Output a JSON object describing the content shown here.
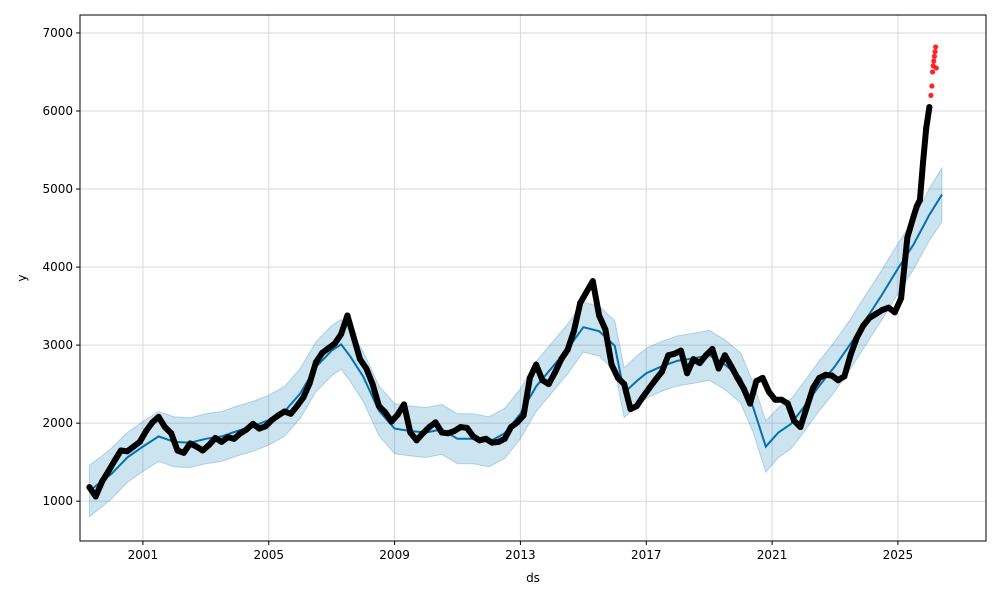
{
  "chart_data": {
    "type": "line",
    "title": "",
    "xlabel": "ds",
    "ylabel": "y",
    "xlim": [
      1999.0,
      2027.8
    ],
    "ylim": [
      490,
      7230
    ],
    "grid": true,
    "legend": "none",
    "x_ticks": [
      {
        "value": 2001.0,
        "label": "2001"
      },
      {
        "value": 2005.0,
        "label": "2005"
      },
      {
        "value": 2009.0,
        "label": "2009"
      },
      {
        "value": 2013.0,
        "label": "2013"
      },
      {
        "value": 2017.0,
        "label": "2017"
      },
      {
        "value": 2021.0,
        "label": "2021"
      },
      {
        "value": 2025.0,
        "label": "2025"
      }
    ],
    "y_ticks": [
      {
        "value": 1000,
        "label": "1000"
      },
      {
        "value": 2000,
        "label": "2000"
      },
      {
        "value": 3000,
        "label": "3000"
      },
      {
        "value": 4000,
        "label": "4000"
      },
      {
        "value": 5000,
        "label": "5000"
      },
      {
        "value": 6000,
        "label": "6000"
      },
      {
        "value": 7000,
        "label": "7000"
      }
    ],
    "colors": {
      "trend": "#0072B2",
      "band": "#0072B2",
      "observed": "#000000",
      "recent": "#FF0000",
      "grid": "#d9d9d9"
    },
    "series": [
      {
        "kind": "forecast",
        "x": [
          1999.3,
          1999.7,
          2000.0,
          2000.5,
          2001.0,
          2001.5,
          2002.0,
          2002.5,
          2003.0,
          2003.5,
          2004.0,
          2004.5,
          2005.0,
          2005.5,
          2006.0,
          2006.5,
          2007.0,
          2007.3,
          2007.6,
          2008.0,
          2008.5,
          2009.0,
          2009.5,
          2010.0,
          2010.5,
          2011.0,
          2011.5,
          2012.0,
          2012.5,
          2013.0,
          2013.5,
          2014.0,
          2014.5,
          2015.0,
          2015.5,
          2016.0,
          2016.3,
          2016.7,
          2017.0,
          2017.5,
          2018.0,
          2018.5,
          2019.0,
          2019.5,
          2020.0,
          2020.4,
          2020.8,
          2021.2,
          2021.6,
          2022.0,
          2022.5,
          2023.0,
          2023.5,
          2024.0,
          2024.5,
          2025.0,
          2025.5,
          2026.0,
          2026.4
        ],
        "y": [
          1130,
          1260,
          1350,
          1560,
          1700,
          1830,
          1760,
          1750,
          1800,
          1830,
          1900,
          1960,
          2040,
          2150,
          2380,
          2720,
          2930,
          3010,
          2850,
          2600,
          2160,
          1930,
          1900,
          1880,
          1920,
          1800,
          1800,
          1760,
          1870,
          2120,
          2470,
          2710,
          2950,
          3230,
          3180,
          2990,
          2390,
          2540,
          2640,
          2730,
          2800,
          2830,
          2870,
          2750,
          2580,
          2200,
          1700,
          1880,
          1990,
          2200,
          2480,
          2730,
          3020,
          3340,
          3650,
          3980,
          4290,
          4670,
          4930
        ],
        "lower": [
          800,
          930,
          1030,
          1240,
          1380,
          1510,
          1440,
          1430,
          1480,
          1510,
          1580,
          1640,
          1720,
          1830,
          2060,
          2400,
          2610,
          2690,
          2530,
          2280,
          1840,
          1610,
          1580,
          1560,
          1600,
          1480,
          1480,
          1440,
          1550,
          1800,
          2150,
          2390,
          2630,
          2910,
          2860,
          2670,
          2070,
          2220,
          2320,
          2410,
          2480,
          2510,
          2550,
          2430,
          2260,
          1880,
          1370,
          1560,
          1670,
          1880,
          2160,
          2410,
          2700,
          3020,
          3330,
          3660,
          3970,
          4340,
          4580
        ],
        "upper": [
          1460,
          1580,
          1680,
          1880,
          2020,
          2150,
          2080,
          2070,
          2120,
          2150,
          2220,
          2280,
          2360,
          2470,
          2700,
          3040,
          3250,
          3330,
          3170,
          2920,
          2480,
          2250,
          2220,
          2200,
          2240,
          2120,
          2120,
          2080,
          2190,
          2440,
          2790,
          3030,
          3270,
          3550,
          3500,
          3310,
          2710,
          2860,
          2960,
          3050,
          3120,
          3150,
          3190,
          3070,
          2900,
          2520,
          2030,
          2200,
          2310,
          2520,
          2800,
          3050,
          3340,
          3660,
          3970,
          4300,
          4610,
          5010,
          5270
        ]
      },
      {
        "kind": "observed",
        "x": [
          1999.3,
          1999.5,
          1999.7,
          1999.9,
          2000.1,
          2000.3,
          2000.5,
          2000.7,
          2000.9,
          2001.1,
          2001.3,
          2001.5,
          2001.7,
          2001.9,
          2002.1,
          2002.3,
          2002.5,
          2002.7,
          2002.9,
          2003.1,
          2003.3,
          2003.5,
          2003.7,
          2003.9,
          2004.1,
          2004.3,
          2004.5,
          2004.7,
          2004.9,
          2005.1,
          2005.3,
          2005.5,
          2005.7,
          2005.9,
          2006.1,
          2006.3,
          2006.5,
          2006.7,
          2006.9,
          2007.1,
          2007.3,
          2007.5,
          2007.7,
          2007.9,
          2008.1,
          2008.3,
          2008.5,
          2008.7,
          2008.9,
          2009.1,
          2009.3,
          2009.5,
          2009.7,
          2009.9,
          2010.1,
          2010.3,
          2010.5,
          2010.7,
          2010.9,
          2011.1,
          2011.3,
          2011.5,
          2011.7,
          2011.9,
          2012.1,
          2012.3,
          2012.5,
          2012.7,
          2012.9,
          2013.1,
          2013.3,
          2013.5,
          2013.7,
          2013.9,
          2014.1,
          2014.3,
          2014.5,
          2014.7,
          2014.9,
          2015.1,
          2015.3,
          2015.5,
          2015.7,
          2015.9,
          2016.1,
          2016.3,
          2016.5,
          2016.7,
          2016.9,
          2017.1,
          2017.3,
          2017.5,
          2017.7,
          2017.9,
          2018.1,
          2018.3,
          2018.5,
          2018.7,
          2018.9,
          2019.1,
          2019.3,
          2019.5,
          2019.7,
          2019.9,
          2020.1,
          2020.3,
          2020.5,
          2020.7,
          2020.9,
          2021.1,
          2021.3,
          2021.5,
          2021.7,
          2021.9,
          2022.1,
          2022.3,
          2022.5,
          2022.7,
          2022.9,
          2023.1,
          2023.3,
          2023.5,
          2023.7,
          2023.9,
          2024.1,
          2024.3,
          2024.5,
          2024.7,
          2024.9,
          2025.1,
          2025.3,
          2025.5,
          2025.6,
          2025.7,
          2025.8,
          2025.9,
          2026.0
        ],
        "y": [
          1180,
          1060,
          1250,
          1380,
          1520,
          1650,
          1640,
          1700,
          1760,
          1900,
          2010,
          2080,
          1950,
          1870,
          1650,
          1620,
          1740,
          1700,
          1650,
          1720,
          1810,
          1760,
          1820,
          1800,
          1870,
          1920,
          1990,
          1930,
          1960,
          2040,
          2100,
          2150,
          2120,
          2220,
          2330,
          2510,
          2780,
          2900,
          2960,
          3020,
          3140,
          3380,
          3100,
          2820,
          2700,
          2500,
          2220,
          2140,
          2020,
          2110,
          2240,
          1880,
          1780,
          1870,
          1950,
          2010,
          1880,
          1870,
          1900,
          1950,
          1940,
          1830,
          1780,
          1800,
          1750,
          1760,
          1800,
          1950,
          2010,
          2100,
          2580,
          2750,
          2550,
          2500,
          2650,
          2820,
          2940,
          3180,
          3540,
          3680,
          3820,
          3380,
          3200,
          2750,
          2580,
          2500,
          2180,
          2220,
          2340,
          2450,
          2560,
          2660,
          2870,
          2890,
          2930,
          2640,
          2820,
          2770,
          2870,
          2950,
          2700,
          2870,
          2730,
          2580,
          2440,
          2250,
          2540,
          2580,
          2400,
          2300,
          2300,
          2250,
          2030,
          1950,
          2200,
          2450,
          2580,
          2620,
          2610,
          2550,
          2600,
          2880,
          3100,
          3250,
          3350,
          3400,
          3450,
          3480,
          3420,
          3600,
          4380,
          4650,
          4780,
          4860,
          5350,
          5780,
          6050
        ],
        "color": "#000000"
      },
      {
        "kind": "recent",
        "x": [
          2026.05,
          2026.08,
          2026.1,
          2026.12,
          2026.14,
          2026.16,
          2026.18,
          2026.2,
          2026.22
        ],
        "y": [
          6200,
          6320,
          6500,
          6580,
          6640,
          6700,
          6760,
          6820,
          6550
        ],
        "color": "#FF0000"
      }
    ]
  }
}
